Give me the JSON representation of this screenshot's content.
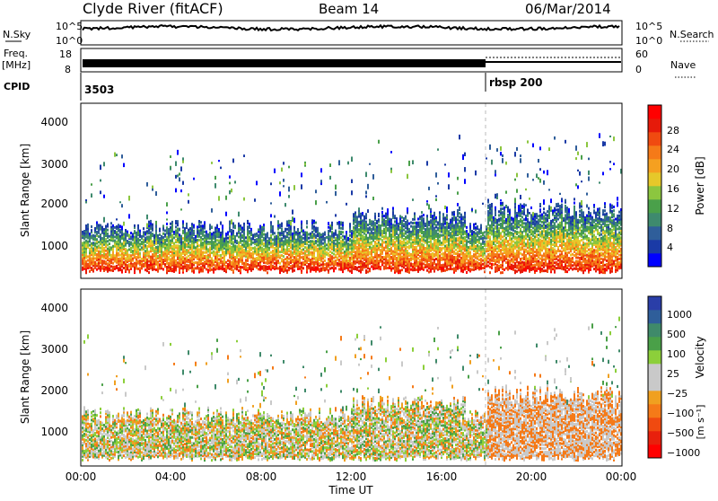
{
  "header": {
    "station": "Clyde River (fitACF)",
    "beam": "Beam 14",
    "date": "06/Mar/2014"
  },
  "status_panels": {
    "nsky_label": "N.Sky",
    "nsearch_label": "N.Search",
    "freq_label_1": "Freq.",
    "freq_label_2": "[MHz]",
    "nave_label": "Nave",
    "cpid_label": "CPID",
    "nsky_ticks": [
      "10^5",
      "10^0"
    ],
    "nsearch_ticks": [
      "10^5",
      "10^0"
    ],
    "freq_ticks": [
      "18",
      "8"
    ],
    "nave_ticks": [
      "60",
      "0"
    ],
    "cpid_segments": [
      {
        "label": "3503",
        "start_hour": 0
      },
      {
        "label": "rbsp 200",
        "start_hour": 18
      }
    ]
  },
  "x_axis": {
    "title": "Time UT",
    "ticks": [
      "00:00",
      "04:00",
      "08:00",
      "12:00",
      "16:00",
      "20:00",
      "00:00"
    ]
  },
  "colors": {
    "power_scale": [
      "#0000ff",
      "#1a3aa6",
      "#2f5e9a",
      "#3e8a6e",
      "#4aa04a",
      "#8cc63f",
      "#e6c82a",
      "#f5a020",
      "#f57a18",
      "#f04a10",
      "#e61a0a",
      "#ff0000"
    ],
    "velocity_scale": [
      "#2a3ea8",
      "#2f5e9a",
      "#3f8a6a",
      "#4aa048",
      "#8ccf3a",
      "#c9c9c9",
      "#c9c9c9",
      "#f0a020",
      "#f57a18",
      "#f04a10",
      "#e8200c",
      "#ff0000"
    ]
  },
  "chart_data": [
    {
      "type": "heatmap",
      "name": "power",
      "ylabel": "Slant Range [km]",
      "yticks": [
        "1000",
        "2000",
        "3000",
        "4000"
      ],
      "ylim": [
        300,
        4500
      ],
      "xlim_hours": [
        0,
        24
      ],
      "colorbar_label": "Power [dB]",
      "colorbar_ticks": [
        "4",
        "8",
        "12",
        "16",
        "20",
        "24",
        "28"
      ],
      "colorbar_range": [
        0,
        32
      ]
    },
    {
      "type": "heatmap",
      "name": "velocity",
      "ylabel": "Slant Range [km]",
      "yticks": [
        "1000",
        "2000",
        "3000",
        "4000"
      ],
      "ylim": [
        300,
        4500
      ],
      "xlim_hours": [
        0,
        24
      ],
      "colorbar_label": "Velocity",
      "colorbar_unit": "[m s⁻¹]",
      "colorbar_ticks": [
        "1000",
        "500",
        "100",
        "25",
        "−25",
        "−100",
        "−500",
        "−1000"
      ],
      "mode_change_hour": 18
    }
  ]
}
